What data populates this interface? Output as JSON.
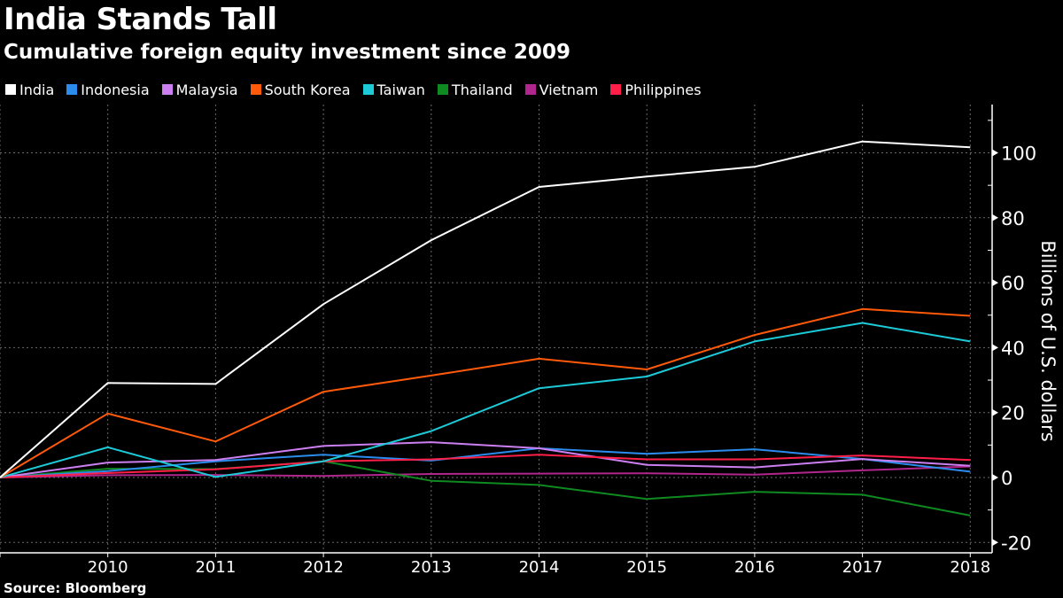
{
  "header": {
    "title": "India Stands Tall",
    "subtitle": "Cumulative foreign equity investment since 2009"
  },
  "footer": {
    "source": "Source: Bloomberg"
  },
  "chart_data": {
    "type": "line",
    "title": "India Stands Tall",
    "subtitle": "Cumulative foreign equity investment since 2009",
    "xlabel": "",
    "ylabel": "Billions of U.S. dollars",
    "y_axis_side": "right",
    "x": [
      2009,
      2010,
      2011,
      2012,
      2013,
      2014,
      2015,
      2016,
      2017,
      2018
    ],
    "x_tick_labels": [
      "2010",
      "2011",
      "2012",
      "2013",
      "2014",
      "2015",
      "2016",
      "2017",
      "2018"
    ],
    "y_ticks": [
      -20,
      0,
      20,
      40,
      60,
      80,
      100
    ],
    "y_tick_labels": [
      "-20",
      "0",
      "20",
      "40",
      "60",
      "80",
      "100"
    ],
    "ylim": [
      -23,
      115
    ],
    "grid": true,
    "legend_position": "top-left",
    "series": [
      {
        "name": "India",
        "color": "#ffffff",
        "values": [
          0,
          29.1,
          28.8,
          53.4,
          73.1,
          89.5,
          92.7,
          95.7,
          103.5,
          101.7
        ]
      },
      {
        "name": "Indonesia",
        "color": "#2b8cee",
        "values": [
          0,
          2.0,
          5.0,
          7.0,
          5.2,
          9.0,
          7.3,
          8.7,
          5.7,
          1.8
        ]
      },
      {
        "name": "Malaysia",
        "color": "#cc7ff0",
        "values": [
          0,
          4.6,
          5.4,
          9.7,
          10.9,
          9.0,
          3.9,
          3.1,
          5.7,
          3.6
        ]
      },
      {
        "name": "South Korea",
        "color": "#ff5a0a",
        "values": [
          0,
          19.7,
          11.1,
          26.4,
          31.4,
          36.6,
          33.3,
          43.9,
          51.9,
          49.8
        ]
      },
      {
        "name": "Taiwan",
        "color": "#1ccad8",
        "values": [
          0,
          9.3,
          0.2,
          5.0,
          14.3,
          27.5,
          31.1,
          41.9,
          47.6,
          41.9
        ]
      },
      {
        "name": "Thailand",
        "color": "#0f8a20",
        "values": [
          0,
          2.7,
          2.6,
          5.0,
          -1.0,
          -2.3,
          -6.6,
          -4.4,
          -5.3,
          -11.7
        ]
      },
      {
        "name": "Vietnam",
        "color": "#b0268c",
        "values": [
          0,
          0.7,
          0.8,
          0.5,
          1.1,
          1.2,
          1.3,
          0.9,
          2.2,
          3.4
        ]
      },
      {
        "name": "Philippines",
        "color": "#ff1f48",
        "values": [
          0,
          1.4,
          2.5,
          5.0,
          5.6,
          7.0,
          5.6,
          5.6,
          6.8,
          5.4
        ]
      }
    ]
  }
}
